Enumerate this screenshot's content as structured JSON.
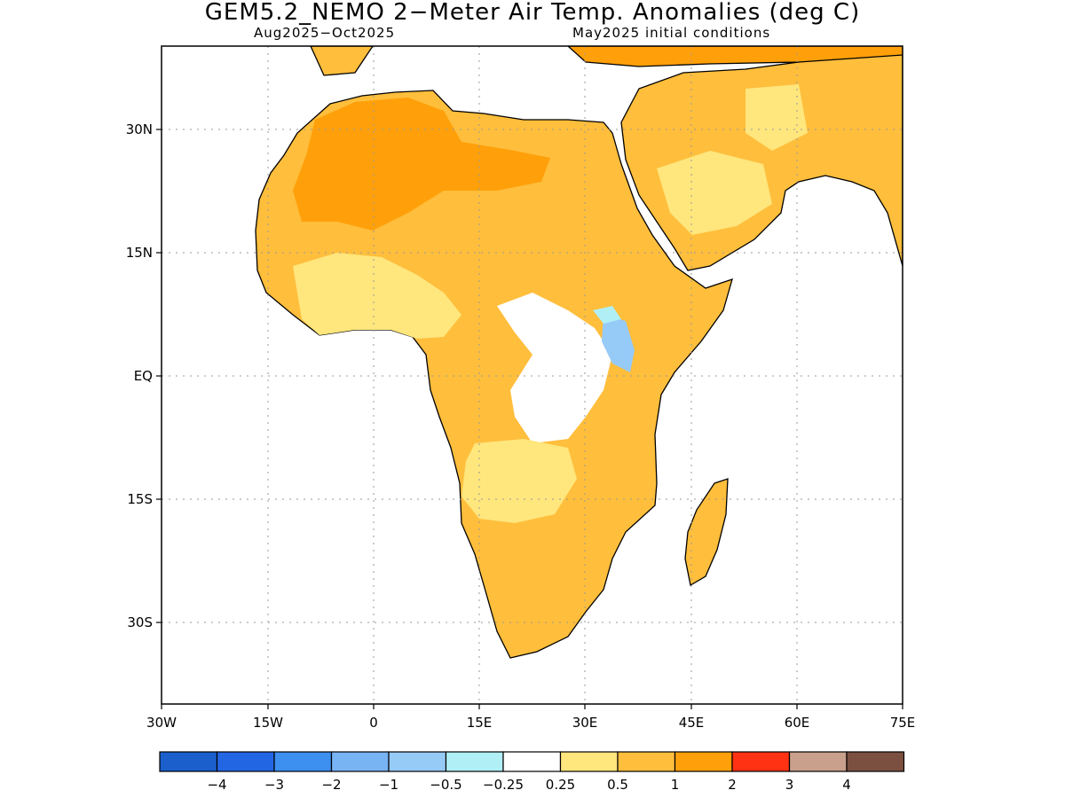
{
  "title": "GEM5.2_NEMO 2−Meter Air Temp. Anomalies (deg C)",
  "subtitle_left": "Aug2025−Oct2025",
  "subtitle_right": "May2025 initial conditions",
  "map": {
    "region": "Africa",
    "lat_ticks": [
      "30N",
      "15N",
      "EQ",
      "15S",
      "30S"
    ],
    "lon_ticks": [
      "30W",
      "15W",
      "0",
      "15E",
      "30E",
      "45E",
      "60E",
      "75E"
    ],
    "grid": "dotted"
  },
  "colorbar": {
    "colors": [
      "#1a5fcc",
      "#2266e4",
      "#3d8ff0",
      "#78b3f4",
      "#96caf7",
      "#b1eff7",
      "#ffffff",
      "#ffe67d",
      "#ffbe3c",
      "#ffa00a",
      "#ff3214",
      "#c8a08c",
      "#7c5040"
    ],
    "labels": [
      "−4",
      "−3",
      "−2",
      "−1",
      "−0.5",
      "−0.25",
      "0.25",
      "0.5",
      "1",
      "2",
      "3",
      "4"
    ]
  },
  "legend_colors": {
    "light_yellow": "#ffe67d",
    "orange": "#ffbe3c",
    "dark_orange": "#ffa00a",
    "light_blue": "#96caf7",
    "pale_blue": "#b1eff7"
  }
}
